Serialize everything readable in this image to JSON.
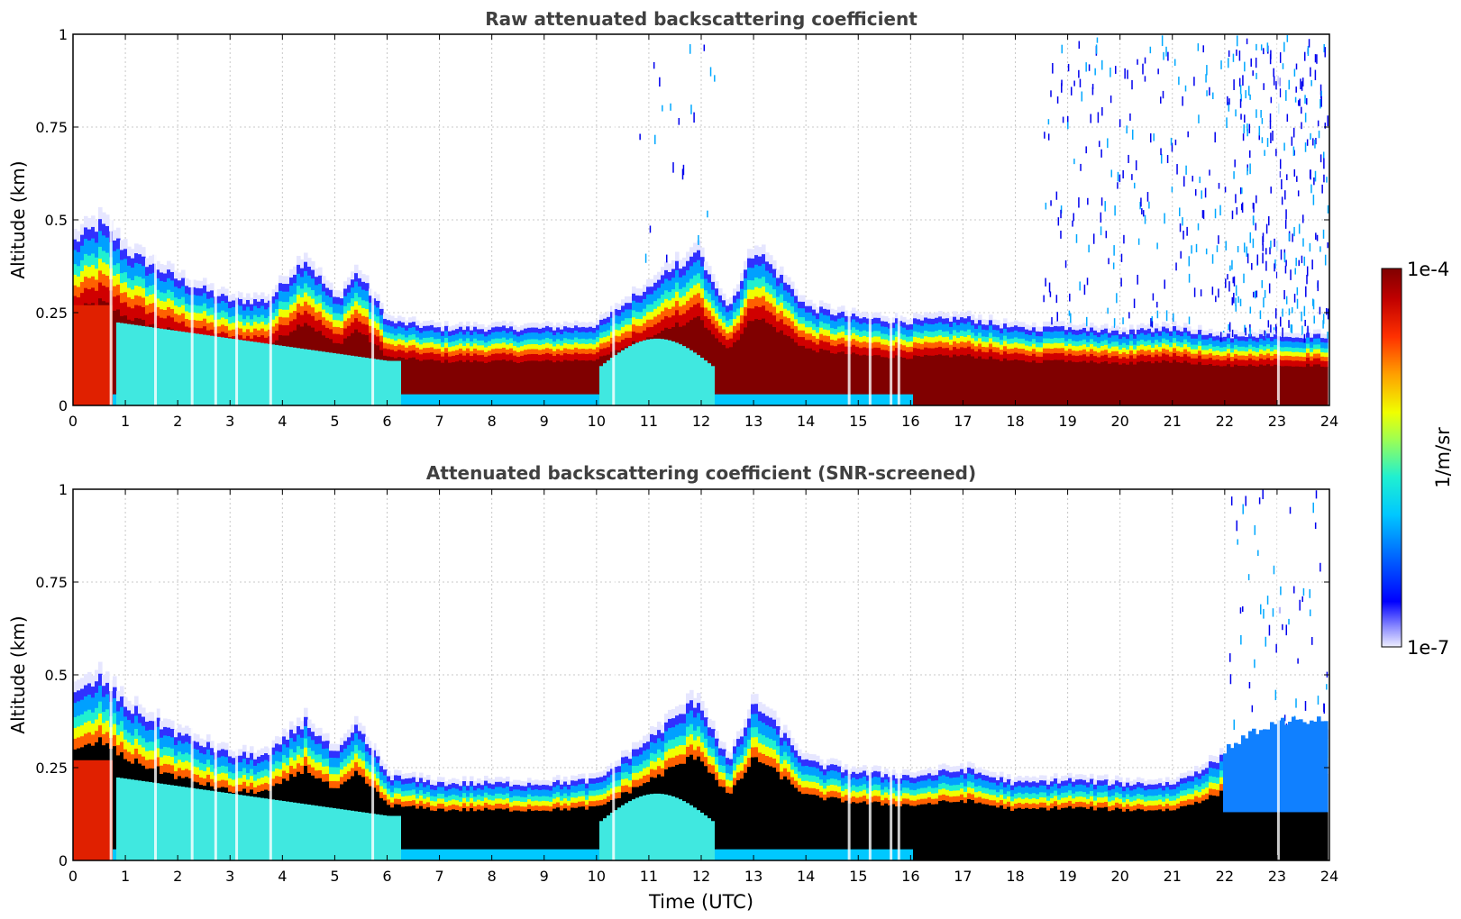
{
  "chart_data": [
    {
      "type": "heatmap",
      "title": "Raw attenuated backscattering coefficient",
      "xlabel": "",
      "ylabel": "Altitude (km)",
      "xlim": [
        0,
        24
      ],
      "ylim": [
        0,
        1
      ],
      "xticks": [
        "0",
        "1",
        "2",
        "3",
        "4",
        "5",
        "6",
        "7",
        "8",
        "9",
        "10",
        "11",
        "12",
        "13",
        "14",
        "15",
        "16",
        "17",
        "18",
        "19",
        "20",
        "21",
        "22",
        "23",
        "24"
      ],
      "yticks": [
        "0",
        "0.25",
        "0.5",
        "0.75",
        "1"
      ],
      "grid": true,
      "colorscale": "jet, log",
      "layer_top_km": {
        "time_h": [
          0,
          0.5,
          1,
          2,
          3,
          3.7,
          4.4,
          5.0,
          5.4,
          6,
          7,
          8,
          9,
          10,
          11,
          11.9,
          12.5,
          13.0,
          14,
          15,
          16,
          17,
          18,
          19,
          20,
          21,
          22,
          23,
          23.9
        ],
        "top_km": [
          0.47,
          0.52,
          0.44,
          0.36,
          0.3,
          0.3,
          0.42,
          0.3,
          0.38,
          0.24,
          0.22,
          0.22,
          0.22,
          0.23,
          0.35,
          0.44,
          0.28,
          0.45,
          0.28,
          0.25,
          0.24,
          0.25,
          0.22,
          0.22,
          0.21,
          0.22,
          0.2,
          0.2,
          0.2
        ]
      },
      "noise_region": "sparse high-altitude noise increasing after 18 UTC, dense after 22 UTC"
    },
    {
      "type": "heatmap",
      "title": "Attenuated backscattering coefficient (SNR-screened)",
      "xlabel": "Time (UTC)",
      "ylabel": "Altitude (km)",
      "xlim": [
        0,
        24
      ],
      "ylim": [
        0,
        1
      ],
      "xticks": [
        "0",
        "1",
        "2",
        "3",
        "4",
        "5",
        "6",
        "7",
        "8",
        "9",
        "10",
        "11",
        "12",
        "13",
        "14",
        "15",
        "16",
        "17",
        "18",
        "19",
        "20",
        "21",
        "22",
        "23",
        "24"
      ],
      "yticks": [
        "0",
        "0.25",
        "0.5",
        "0.75",
        "1"
      ],
      "grid": true,
      "colorscale": "jet, log, black = saturated",
      "layer_top_km": {
        "time_h": [
          0,
          0.5,
          1,
          2,
          3,
          3.7,
          4.4,
          5.0,
          5.4,
          6,
          7,
          8,
          9,
          10,
          11,
          11.9,
          12.5,
          13.0,
          14,
          15,
          16,
          17,
          18,
          19,
          20,
          21,
          22,
          23,
          23.9
        ],
        "top_km": [
          0.47,
          0.52,
          0.44,
          0.36,
          0.3,
          0.3,
          0.4,
          0.3,
          0.38,
          0.24,
          0.22,
          0.22,
          0.22,
          0.23,
          0.35,
          0.46,
          0.28,
          0.45,
          0.28,
          0.25,
          0.24,
          0.26,
          0.22,
          0.23,
          0.22,
          0.22,
          0.3,
          0.38,
          0.38
        ]
      }
    }
  ],
  "colorbar": {
    "max_label": "1e-4",
    "min_label": "1e-7",
    "unit_label": "1/m/sr",
    "colors": [
      "#e8e8ff",
      "#9090ff",
      "#0000ff",
      "#0060ff",
      "#00b0ff",
      "#00f0f0",
      "#40ffb0",
      "#a0ff50",
      "#f0ff00",
      "#ffb000",
      "#ff5000",
      "#e00000",
      "#800000"
    ]
  }
}
